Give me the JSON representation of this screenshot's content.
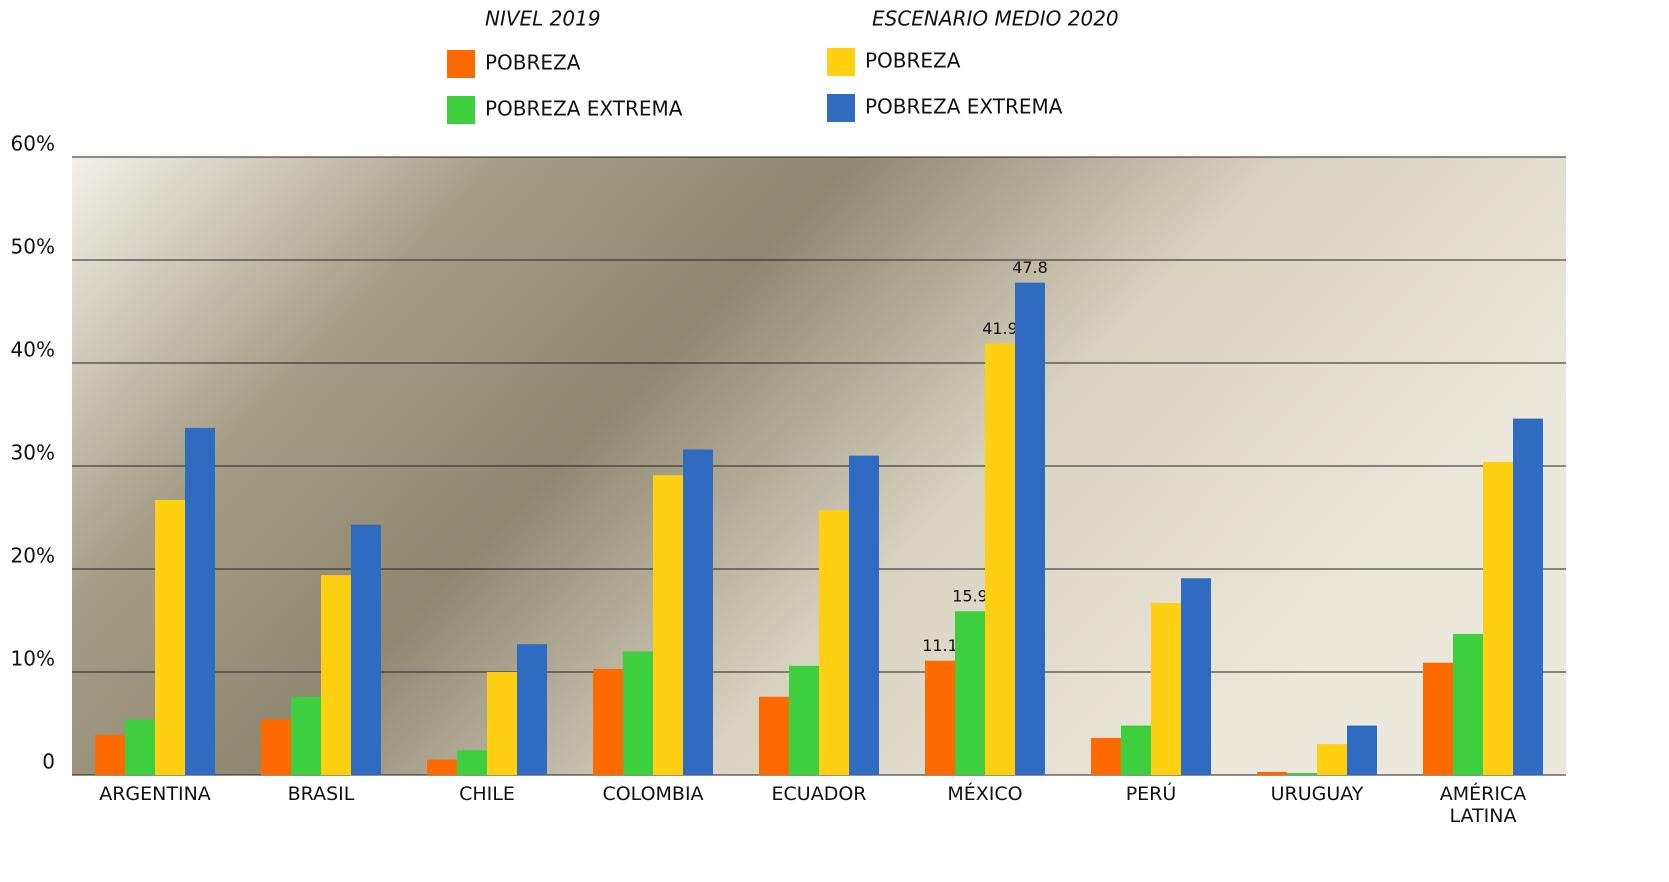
{
  "chart_data": {
    "type": "bar",
    "legend_titles": [
      "NIVEL 2019",
      "ESCENARIO MEDIO 2020"
    ],
    "categories": [
      "ARGENTINA",
      "BRASIL",
      "CHILE",
      "COLOMBIA",
      "ECUADOR",
      "MÉXICO",
      "PERÚ",
      "URUGUAY",
      "AMÉRICA LATINA"
    ],
    "series": [
      {
        "name": "POBREZA",
        "color": "#ff6a00",
        "values": [
          3.9,
          5.4,
          1.5,
          10.3,
          7.6,
          11.1,
          3.6,
          0.3,
          10.9
        ],
        "value_labels": [
          null,
          null,
          null,
          null,
          null,
          "11.1",
          null,
          null,
          null
        ]
      },
      {
        "name": "POBREZA EXTREMA",
        "color": "#3ecf3e",
        "values": [
          5.4,
          7.6,
          2.4,
          12.0,
          10.6,
          15.9,
          4.8,
          0.2,
          13.7
        ],
        "value_labels": [
          null,
          null,
          null,
          null,
          null,
          "15.9",
          null,
          null,
          null
        ]
      },
      {
        "name": "POBREZA",
        "color": "#ffd012",
        "values": [
          26.7,
          19.4,
          10.0,
          29.1,
          25.7,
          41.9,
          16.7,
          3.0,
          30.4
        ],
        "value_labels": [
          null,
          null,
          null,
          null,
          null,
          "41.9",
          null,
          null,
          null
        ]
      },
      {
        "name": "POBREZA EXTREMA",
        "color": "#2f6bc0",
        "values": [
          33.7,
          24.3,
          12.7,
          31.6,
          31.0,
          47.8,
          19.1,
          4.8,
          34.6
        ],
        "value_labels": [
          null,
          null,
          null,
          null,
          null,
          "47.8",
          null,
          null,
          null
        ]
      }
    ],
    "ylim": [
      0,
      60
    ],
    "yticks": [
      0,
      {
        "value": 10,
        "label": "10%"
      },
      {
        "value": 20,
        "label": "20%"
      },
      {
        "value": 30,
        "label": "30%"
      },
      {
        "value": 40,
        "label": "40%"
      },
      {
        "value": 50,
        "label": "50%"
      },
      {
        "value": 60,
        "label": "60%"
      }
    ],
    "grid": true
  }
}
